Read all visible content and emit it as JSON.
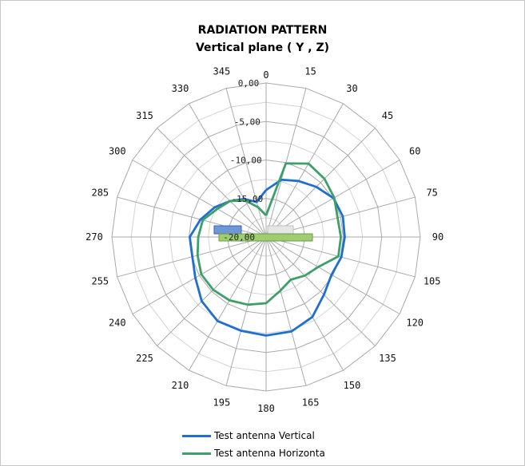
{
  "chart_data": {
    "type": "polar-line",
    "title": "RADIATION PATTERN",
    "subtitle": "Vertical plane  ( Y , Z)",
    "angles": [
      0,
      15,
      30,
      45,
      60,
      75,
      90,
      105,
      120,
      135,
      150,
      165,
      180,
      195,
      210,
      225,
      240,
      255,
      270,
      285,
      300,
      315,
      330,
      345
    ],
    "angle_labels": [
      "0",
      "15",
      "30",
      "45",
      "60",
      "75",
      "90",
      "105",
      "120",
      "135",
      "150",
      "165",
      "180",
      "195",
      "210",
      "225",
      "240",
      "255",
      "270",
      "285",
      "300",
      "315",
      "330",
      "345"
    ],
    "rlim": [
      -20,
      0
    ],
    "radial_ticks": [
      0,
      -5,
      -10,
      -15,
      -20
    ],
    "radial_tick_labels": [
      "0,00",
      "-5,00",
      "-10,00",
      "-15,00",
      "-20,00"
    ],
    "series": [
      {
        "name": "Test antenna Vertical",
        "color": "#1f6fd1",
        "theta": [
          0,
          15,
          30,
          45,
          60,
          75,
          90,
          105,
          120,
          135,
          150,
          165,
          180,
          195,
          210,
          225,
          240,
          255,
          270,
          285,
          300,
          315,
          330,
          345
        ],
        "values": [
          -13.9,
          -12.3,
          -11.6,
          -10.8,
          -9.9,
          -9.7,
          -9.8,
          -9.9,
          -10.2,
          -9.4,
          -8.0,
          -7.3,
          -7.2,
          -7.4,
          -7.4,
          -8.2,
          -9.4,
          -10.1,
          -10.1,
          -11.2,
          -12.3,
          -13.4,
          -14.3,
          -15.3
        ]
      },
      {
        "name": "Test antenna Horizonta",
        "color": "#3f9f6a",
        "theta": [
          0,
          15,
          30,
          45,
          60,
          75,
          90,
          105,
          120,
          135,
          150,
          165,
          180,
          195,
          210,
          225,
          240,
          255,
          270,
          285,
          300,
          315,
          330,
          345
        ],
        "values": [
          -17.2,
          -10.1,
          -9.0,
          -9.3,
          -9.8,
          -10.4,
          -10.3,
          -10.3,
          -12.2,
          -12.9,
          -13.6,
          -12.8,
          -11.4,
          -10.9,
          -10.5,
          -10.3,
          -10.3,
          -10.8,
          -11.2,
          -11.5,
          -12.7,
          -13.4,
          -14.5,
          -16.0
        ]
      }
    ],
    "grid": true,
    "legend": "bottom"
  }
}
